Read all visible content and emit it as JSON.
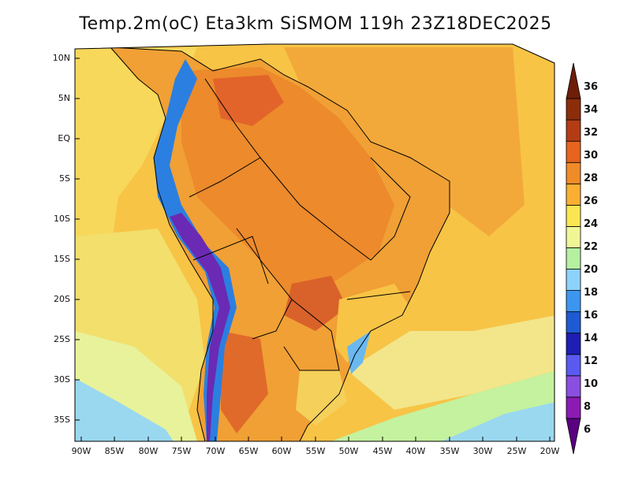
{
  "title": "Temp.2m(oC) Eta3km SiSMOM 119h 23Z18DEC2025",
  "lat_labels": [
    "10N",
    "5N",
    "EQ",
    "5S",
    "10S",
    "15S",
    "20S",
    "25S",
    "30S",
    "35S"
  ],
  "lon_labels": [
    "90W",
    "85W",
    "80W",
    "75W",
    "70W",
    "65W",
    "60W",
    "55W",
    "50W",
    "45W",
    "40W",
    "35W",
    "30W",
    "25W",
    "20W"
  ],
  "colorbar": {
    "labels": [
      "6",
      "8",
      "10",
      "12",
      "14",
      "16",
      "18",
      "20",
      "22",
      "24",
      "26",
      "28",
      "30",
      "32",
      "34",
      "36"
    ],
    "colors": [
      "#5a0080",
      "#8c1ab4",
      "#8a4fe0",
      "#5a5af0",
      "#1e1eb4",
      "#1e5ad2",
      "#3c96f0",
      "#8cd2fa",
      "#b4f0a0",
      "#f0f596",
      "#fae650",
      "#faaf32",
      "#f08c28",
      "#e6641e",
      "#b43c14",
      "#8c2d0a",
      "#6e1e08"
    ]
  },
  "colors": {
    "ocean_warm": "#f5b23a",
    "ocean_mid": "#f8d85a",
    "ocean_cool": "#eef391",
    "land_hot": "#e8642a",
    "andes": "#6a2ab4",
    "border": "#000000"
  }
}
